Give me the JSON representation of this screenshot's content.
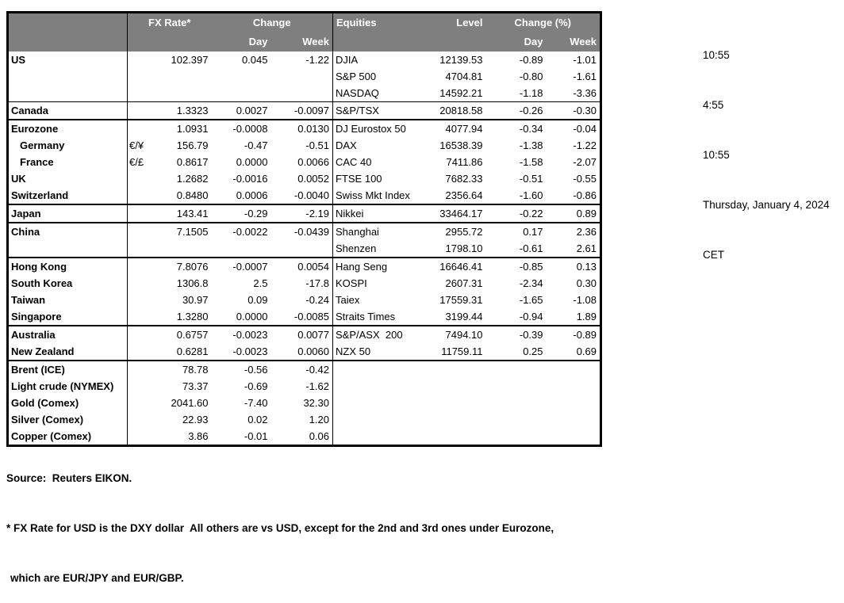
{
  "colors": {
    "header_bg": "#7f7f7f",
    "header_text": "#ffffff",
    "border": "#000000",
    "text": "#000000"
  },
  "info_panel": {
    "lines": [
      "10:55",
      "4:55",
      "10:55",
      "Thursday, January 4, 2024",
      "CET"
    ]
  },
  "table": {
    "header": {
      "fx_rate": "FX Rate*",
      "change": "Change",
      "day_fx": "Day",
      "week_fx": "Week",
      "equities": "Equities",
      "level": "Level",
      "change_pct": "Change (%)",
      "day_eq": "Day",
      "week_eq": "Week"
    },
    "rows": [
      {
        "country": "US",
        "pair": "",
        "fx_rate": "102.397",
        "fx_day": "0.045",
        "fx_week": "-1.22",
        "equity": "DJIA",
        "level": "12139.53",
        "eq_day": "-0.89",
        "eq_week": "-1.01",
        "indent": false,
        "sep": "none"
      },
      {
        "country": "",
        "pair": "",
        "fx_rate": "",
        "fx_day": "",
        "fx_week": "",
        "equity": "S&P 500",
        "level": "4704.81",
        "eq_day": "-0.80",
        "eq_week": "-1.61",
        "indent": false,
        "sep": "none"
      },
      {
        "country": "",
        "pair": "",
        "fx_rate": "",
        "fx_day": "",
        "fx_week": "",
        "equity": "NASDAQ",
        "level": "14592.21",
        "eq_day": "-1.18",
        "eq_week": "-3.36",
        "indent": false,
        "sep": "none"
      },
      {
        "country": "Canada",
        "pair": "",
        "fx_rate": "1.3323",
        "fx_day": "0.0027",
        "fx_week": "-0.0097",
        "equity": "S&P/TSX",
        "level": "20818.58",
        "eq_day": "-0.26",
        "eq_week": "-0.30",
        "indent": false,
        "sep": "thin"
      },
      {
        "country": "Eurozone",
        "pair": "",
        "fx_rate": "1.0931",
        "fx_day": "-0.0008",
        "fx_week": "0.0130",
        "equity": "DJ Eurostox 50",
        "level": "4077.94",
        "eq_day": "-0.34",
        "eq_week": "-0.04",
        "indent": false,
        "sep": "thick"
      },
      {
        "country": "Germany",
        "pair": "€/¥",
        "fx_rate": "156.79",
        "fx_day": "-0.47",
        "fx_week": "-0.51",
        "equity": "DAX",
        "level": "16538.39",
        "eq_day": "-1.38",
        "eq_week": "-1.22",
        "indent": true,
        "sep": "none"
      },
      {
        "country": "France",
        "pair": "€/£",
        "fx_rate": "0.8617",
        "fx_day": "0.0000",
        "fx_week": "0.0066",
        "equity": "CAC 40",
        "level": "7411.86",
        "eq_day": "-1.58",
        "eq_week": "-2.07",
        "indent": true,
        "sep": "none"
      },
      {
        "country": "UK",
        "pair": "",
        "fx_rate": "1.2682",
        "fx_day": "-0.0016",
        "fx_week": "0.0052",
        "equity": "FTSE 100",
        "level": "7682.33",
        "eq_day": "-0.51",
        "eq_week": "-0.55",
        "indent": false,
        "sep": "none"
      },
      {
        "country": "Switzerland",
        "pair": "",
        "fx_rate": "0.8480",
        "fx_day": "0.0006",
        "fx_week": "-0.0040",
        "equity": "Swiss Mkt Index",
        "level": "2356.64",
        "eq_day": "-1.60",
        "eq_week": "-0.86",
        "indent": false,
        "sep": "none"
      },
      {
        "country": "Japan",
        "pair": "",
        "fx_rate": "143.41",
        "fx_day": "-0.29",
        "fx_week": "-2.19",
        "equity": "Nikkei",
        "level": "33464.17",
        "eq_day": "-0.22",
        "eq_week": "0.89",
        "indent": false,
        "sep": "thick"
      },
      {
        "country": "China",
        "pair": "",
        "fx_rate": "7.1505",
        "fx_day": "-0.0022",
        "fx_week": "-0.0439",
        "equity": "Shanghai",
        "level": "2955.72",
        "eq_day": "0.17",
        "eq_week": "2.36",
        "indent": false,
        "sep": "thick"
      },
      {
        "country": "",
        "pair": "",
        "fx_rate": "",
        "fx_day": "",
        "fx_week": "",
        "equity": "Shenzen",
        "level": "1798.10",
        "eq_day": "-0.61",
        "eq_week": "2.61",
        "indent": false,
        "sep": "none"
      },
      {
        "country": "Hong Kong",
        "pair": "",
        "fx_rate": "7.8076",
        "fx_day": "-0.0007",
        "fx_week": "0.0054",
        "equity": "Hang Seng",
        "level": "16646.41",
        "eq_day": "-0.85",
        "eq_week": "0.13",
        "indent": false,
        "sep": "thick"
      },
      {
        "country": "South Korea",
        "pair": "",
        "fx_rate": "1306.8",
        "fx_day": "2.5",
        "fx_week": "-17.8",
        "equity": "KOSPI",
        "level": "2607.31",
        "eq_day": "-2.34",
        "eq_week": "0.30",
        "indent": false,
        "sep": "none"
      },
      {
        "country": "Taiwan",
        "pair": "",
        "fx_rate": "30.97",
        "fx_day": "0.09",
        "fx_week": "-0.24",
        "equity": "Taiex",
        "level": "17559.31",
        "eq_day": "-1.65",
        "eq_week": "-1.08",
        "indent": false,
        "sep": "none"
      },
      {
        "country": "Singapore",
        "pair": "",
        "fx_rate": "1.3280",
        "fx_day": "0.0000",
        "fx_week": "-0.0085",
        "equity": "Straits Times",
        "level": "3199.44",
        "eq_day": "-0.94",
        "eq_week": "1.89",
        "indent": false,
        "sep": "none"
      },
      {
        "country": "Australia",
        "pair": "",
        "fx_rate": "0.6757",
        "fx_day": "-0.0023",
        "fx_week": "0.0077",
        "equity": "S&P/ASX  200",
        "level": "7494.10",
        "eq_day": "-0.39",
        "eq_week": "-0.89",
        "indent": false,
        "sep": "thick"
      },
      {
        "country": "New Zealand",
        "pair": "",
        "fx_rate": "0.6281",
        "fx_day": "-0.0023",
        "fx_week": "0.0060",
        "equity": "NZX 50",
        "level": "11759.11",
        "eq_day": "0.25",
        "eq_week": "0.69",
        "indent": false,
        "sep": "none"
      },
      {
        "country": "Brent (ICE)",
        "pair": "",
        "fx_rate": "78.78",
        "fx_day": "-0.56",
        "fx_week": "-0.42",
        "equity": "",
        "level": "",
        "eq_day": "",
        "eq_week": "",
        "indent": false,
        "sep": "thick"
      },
      {
        "country": "Light crude (NYMEX)",
        "pair": "",
        "fx_rate": "73.37",
        "fx_day": "-0.69",
        "fx_week": "-1.62",
        "equity": "",
        "level": "",
        "eq_day": "",
        "eq_week": "",
        "indent": false,
        "sep": "none"
      },
      {
        "country": "Gold (Comex)",
        "pair": "",
        "fx_rate": "2041.60",
        "fx_day": "-7.40",
        "fx_week": "32.30",
        "equity": "",
        "level": "",
        "eq_day": "",
        "eq_week": "",
        "indent": false,
        "sep": "none"
      },
      {
        "country": "Silver (Comex)",
        "pair": "",
        "fx_rate": "22.93",
        "fx_day": "0.02",
        "fx_week": "1.20",
        "equity": "",
        "level": "",
        "eq_day": "",
        "eq_week": "",
        "indent": false,
        "sep": "none"
      },
      {
        "country": "Copper (Comex)",
        "pair": "",
        "fx_rate": "3.86",
        "fx_day": "-0.01",
        "fx_week": "0.06",
        "equity": "",
        "level": "",
        "eq_day": "",
        "eq_week": "",
        "indent": false,
        "sep": "none"
      }
    ]
  },
  "footer": {
    "source": "Source:  Reuters EIKON.",
    "note1": "* FX Rate for USD is the DXY dollar  All others are vs USD, except for the 2nd and 3rd ones under Eurozone,",
    "note2": "which are EUR/JPY and EUR/GBP."
  }
}
